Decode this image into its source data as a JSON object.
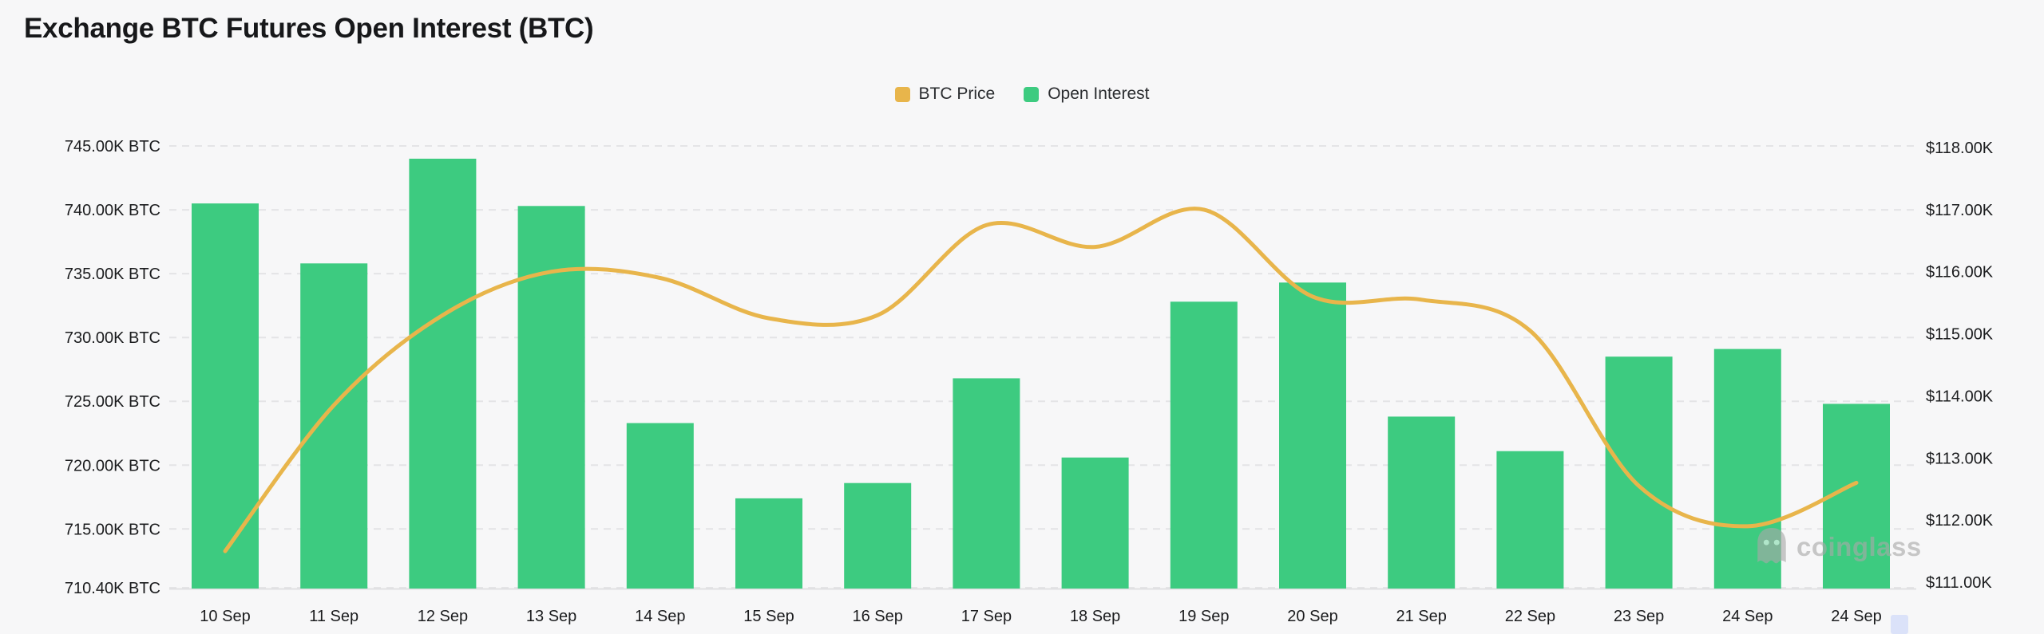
{
  "title": "Exchange BTC Futures Open Interest (BTC)",
  "legend": [
    {
      "label": "BTC Price",
      "color": "#E8B54B"
    },
    {
      "label": "Open Interest",
      "color": "#3DCB80"
    }
  ],
  "watermark": {
    "text": "coinglass"
  },
  "colors": {
    "background": "#F7F7F8",
    "bar_green": "#3DCB80",
    "line_gold": "#E8B54B",
    "gridline": "#E4E4E6",
    "axis_text": "#1B1C1E"
  },
  "chart_data": {
    "type": "bar+line",
    "title": "Exchange BTC Futures Open Interest (BTC)",
    "grid": true,
    "legend_position": "top-center",
    "categories": [
      "10 Sep",
      "11 Sep",
      "12 Sep",
      "13 Sep",
      "14 Sep",
      "15 Sep",
      "16 Sep",
      "17 Sep",
      "18 Sep",
      "19 Sep",
      "20 Sep",
      "21 Sep",
      "22 Sep",
      "23 Sep",
      "24 Sep",
      "24 Sep"
    ],
    "series": [
      {
        "name": "Open Interest",
        "type": "bar",
        "y_axis": "left",
        "unit": "K BTC",
        "color": "#3DCB80",
        "values": [
          740.5,
          735.8,
          744.0,
          740.3,
          723.3,
          717.4,
          718.6,
          726.8,
          720.6,
          732.8,
          734.3,
          723.8,
          721.1,
          728.5,
          729.1,
          724.8
        ]
      },
      {
        "name": "BTC Price",
        "type": "line",
        "y_axis": "right",
        "unit": "K USD",
        "color": "#E8B54B",
        "values": [
          111.5,
          113.85,
          115.3,
          116.0,
          115.9,
          115.25,
          115.3,
          116.75,
          116.4,
          117.0,
          115.6,
          115.55,
          115.05,
          112.55,
          111.9,
          112.6
        ]
      }
    ],
    "left_axis": {
      "min": 710.4,
      "max": 745.0,
      "tick_values": [
        745,
        740,
        735,
        730,
        725,
        720,
        715,
        710.4
      ],
      "tick_labels": [
        "745.00K BTC",
        "740.00K BTC",
        "735.00K BTC",
        "730.00K BTC",
        "725.00K BTC",
        "720.00K BTC",
        "715.00K BTC",
        "710.40K BTC"
      ]
    },
    "right_axis": {
      "min": 111.0,
      "max": 118.0,
      "tick_values": [
        118,
        117,
        116,
        115,
        114,
        113,
        112,
        111
      ],
      "tick_labels": [
        "$118.00K",
        "$117.00K",
        "$116.00K",
        "$115.00K",
        "$114.00K",
        "$113.00K",
        "$112.00K",
        "$111.00K"
      ]
    }
  }
}
